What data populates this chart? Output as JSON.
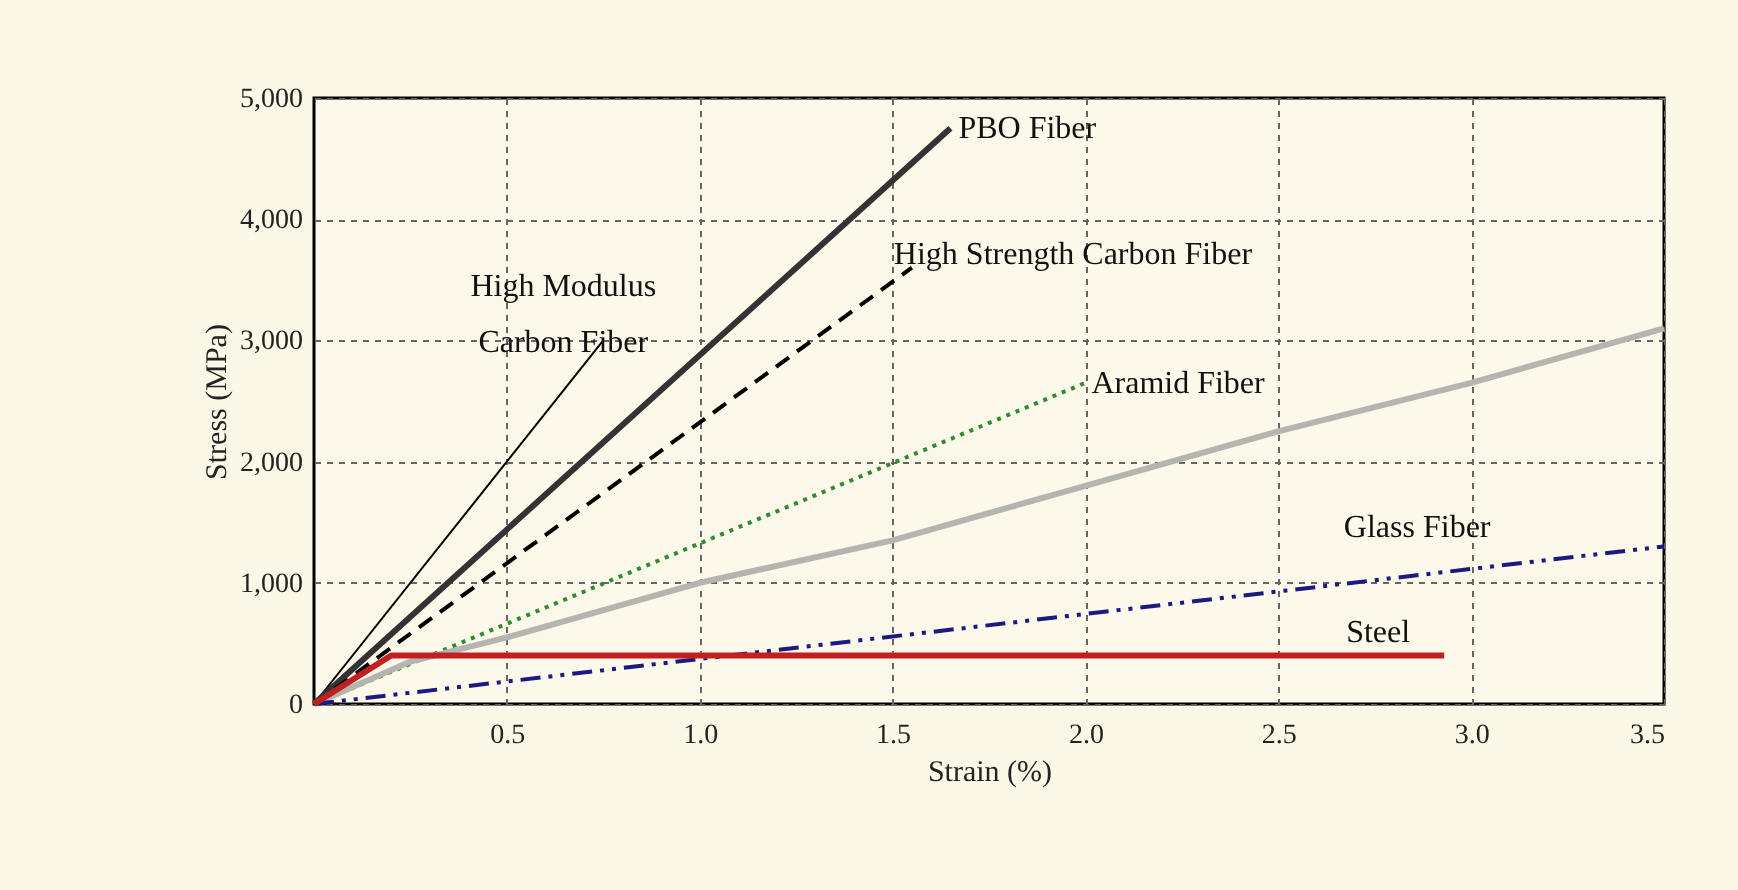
{
  "chart_data": {
    "type": "line",
    "xlabel": "Strain (%)",
    "ylabel": "Stress (MPa)",
    "xlim": [
      0,
      3.5
    ],
    "ylim": [
      0,
      5000
    ],
    "xticks": [
      0.5,
      {
        "value": 1,
        "label": "1.0"
      },
      1.5,
      {
        "value": 2,
        "label": "2.0"
      },
      2.5,
      {
        "value": 3,
        "label": "3.0"
      },
      3.5
    ],
    "yticks": [
      0,
      {
        "value": 1000,
        "label": "1,000"
      },
      {
        "value": 2000,
        "label": "2,000"
      },
      {
        "value": 3000,
        "label": "3,000"
      },
      {
        "value": 4000,
        "label": "4,000"
      },
      {
        "value": 5000,
        "label": "5,000"
      }
    ],
    "grid": true,
    "series": [
      {
        "color": "#000000",
        "line_style": "solid",
        "x": [
          0,
          0.75
        ],
        "values": [
          0,
          3000
        ]
      },
      {
        "color": "#333333",
        "line_style": "solid",
        "x": [
          0,
          1.65
        ],
        "values": [
          0,
          4750
        ]
      },
      {
        "color": "#000000",
        "line_style": "dashed",
        "x": [
          0,
          1.55
        ],
        "values": [
          0,
          3600
        ]
      },
      {
        "color": "#2e8b2e",
        "line_style": "dotted",
        "x": [
          0,
          2.0
        ],
        "values": [
          0,
          2650
        ]
      },
      {
        "color": "#b5b5b0",
        "line_style": "solid",
        "x": [
          0,
          0.25,
          0.5,
          1.0,
          1.5,
          2.0,
          2.5,
          3.0,
          3.5
        ],
        "values": [
          0,
          350,
          550,
          1000,
          1350,
          1800,
          2250,
          2650,
          3100
        ]
      },
      {
        "color": "#1a1a80",
        "line_style": "dashdot",
        "x": [
          0,
          3.5
        ],
        "values": [
          0,
          1300
        ]
      },
      {
        "color": "#c02020",
        "line_style": "solid",
        "x": [
          0,
          0.2,
          2.93
        ],
        "values": [
          0,
          400,
          400
        ]
      }
    ],
    "annotations": [
      {
        "text": "High Modulus\nCarbon Fiber",
        "x": 0.75,
        "y": 3000
      },
      {
        "text": "PBO Fiber",
        "x": 1.65,
        "y": 4750
      },
      {
        "text": "High Strength Carbon Fiber",
        "x": 1.55,
        "y": 3600
      },
      {
        "text": "Aramid Fiber",
        "x": 2.0,
        "y": 2650
      },
      {
        "text": "Glass Fiber",
        "x": 2.86,
        "y": 1062
      },
      {
        "text": "Steel",
        "x": 2.93,
        "y": 400
      }
    ]
  }
}
